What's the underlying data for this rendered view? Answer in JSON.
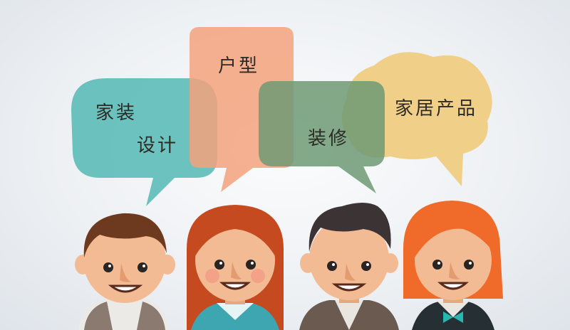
{
  "bubbles": {
    "teal": {
      "line1": "家装",
      "line2": "设计",
      "color": "#5fbdb9"
    },
    "orange": {
      "text": "户型",
      "color": "#f3a27c"
    },
    "green": {
      "text": "装修",
      "color": "#6d9a74"
    },
    "yellow": {
      "text": "家居产品",
      "color": "#efcb7c"
    }
  },
  "colors": {
    "skin": "#f3bb93",
    "boy_hair": "#6e3a1f",
    "girl_hair": "#c54a1f",
    "man_hair": "#3c3434",
    "redhead_hair": "#f06a2a"
  }
}
